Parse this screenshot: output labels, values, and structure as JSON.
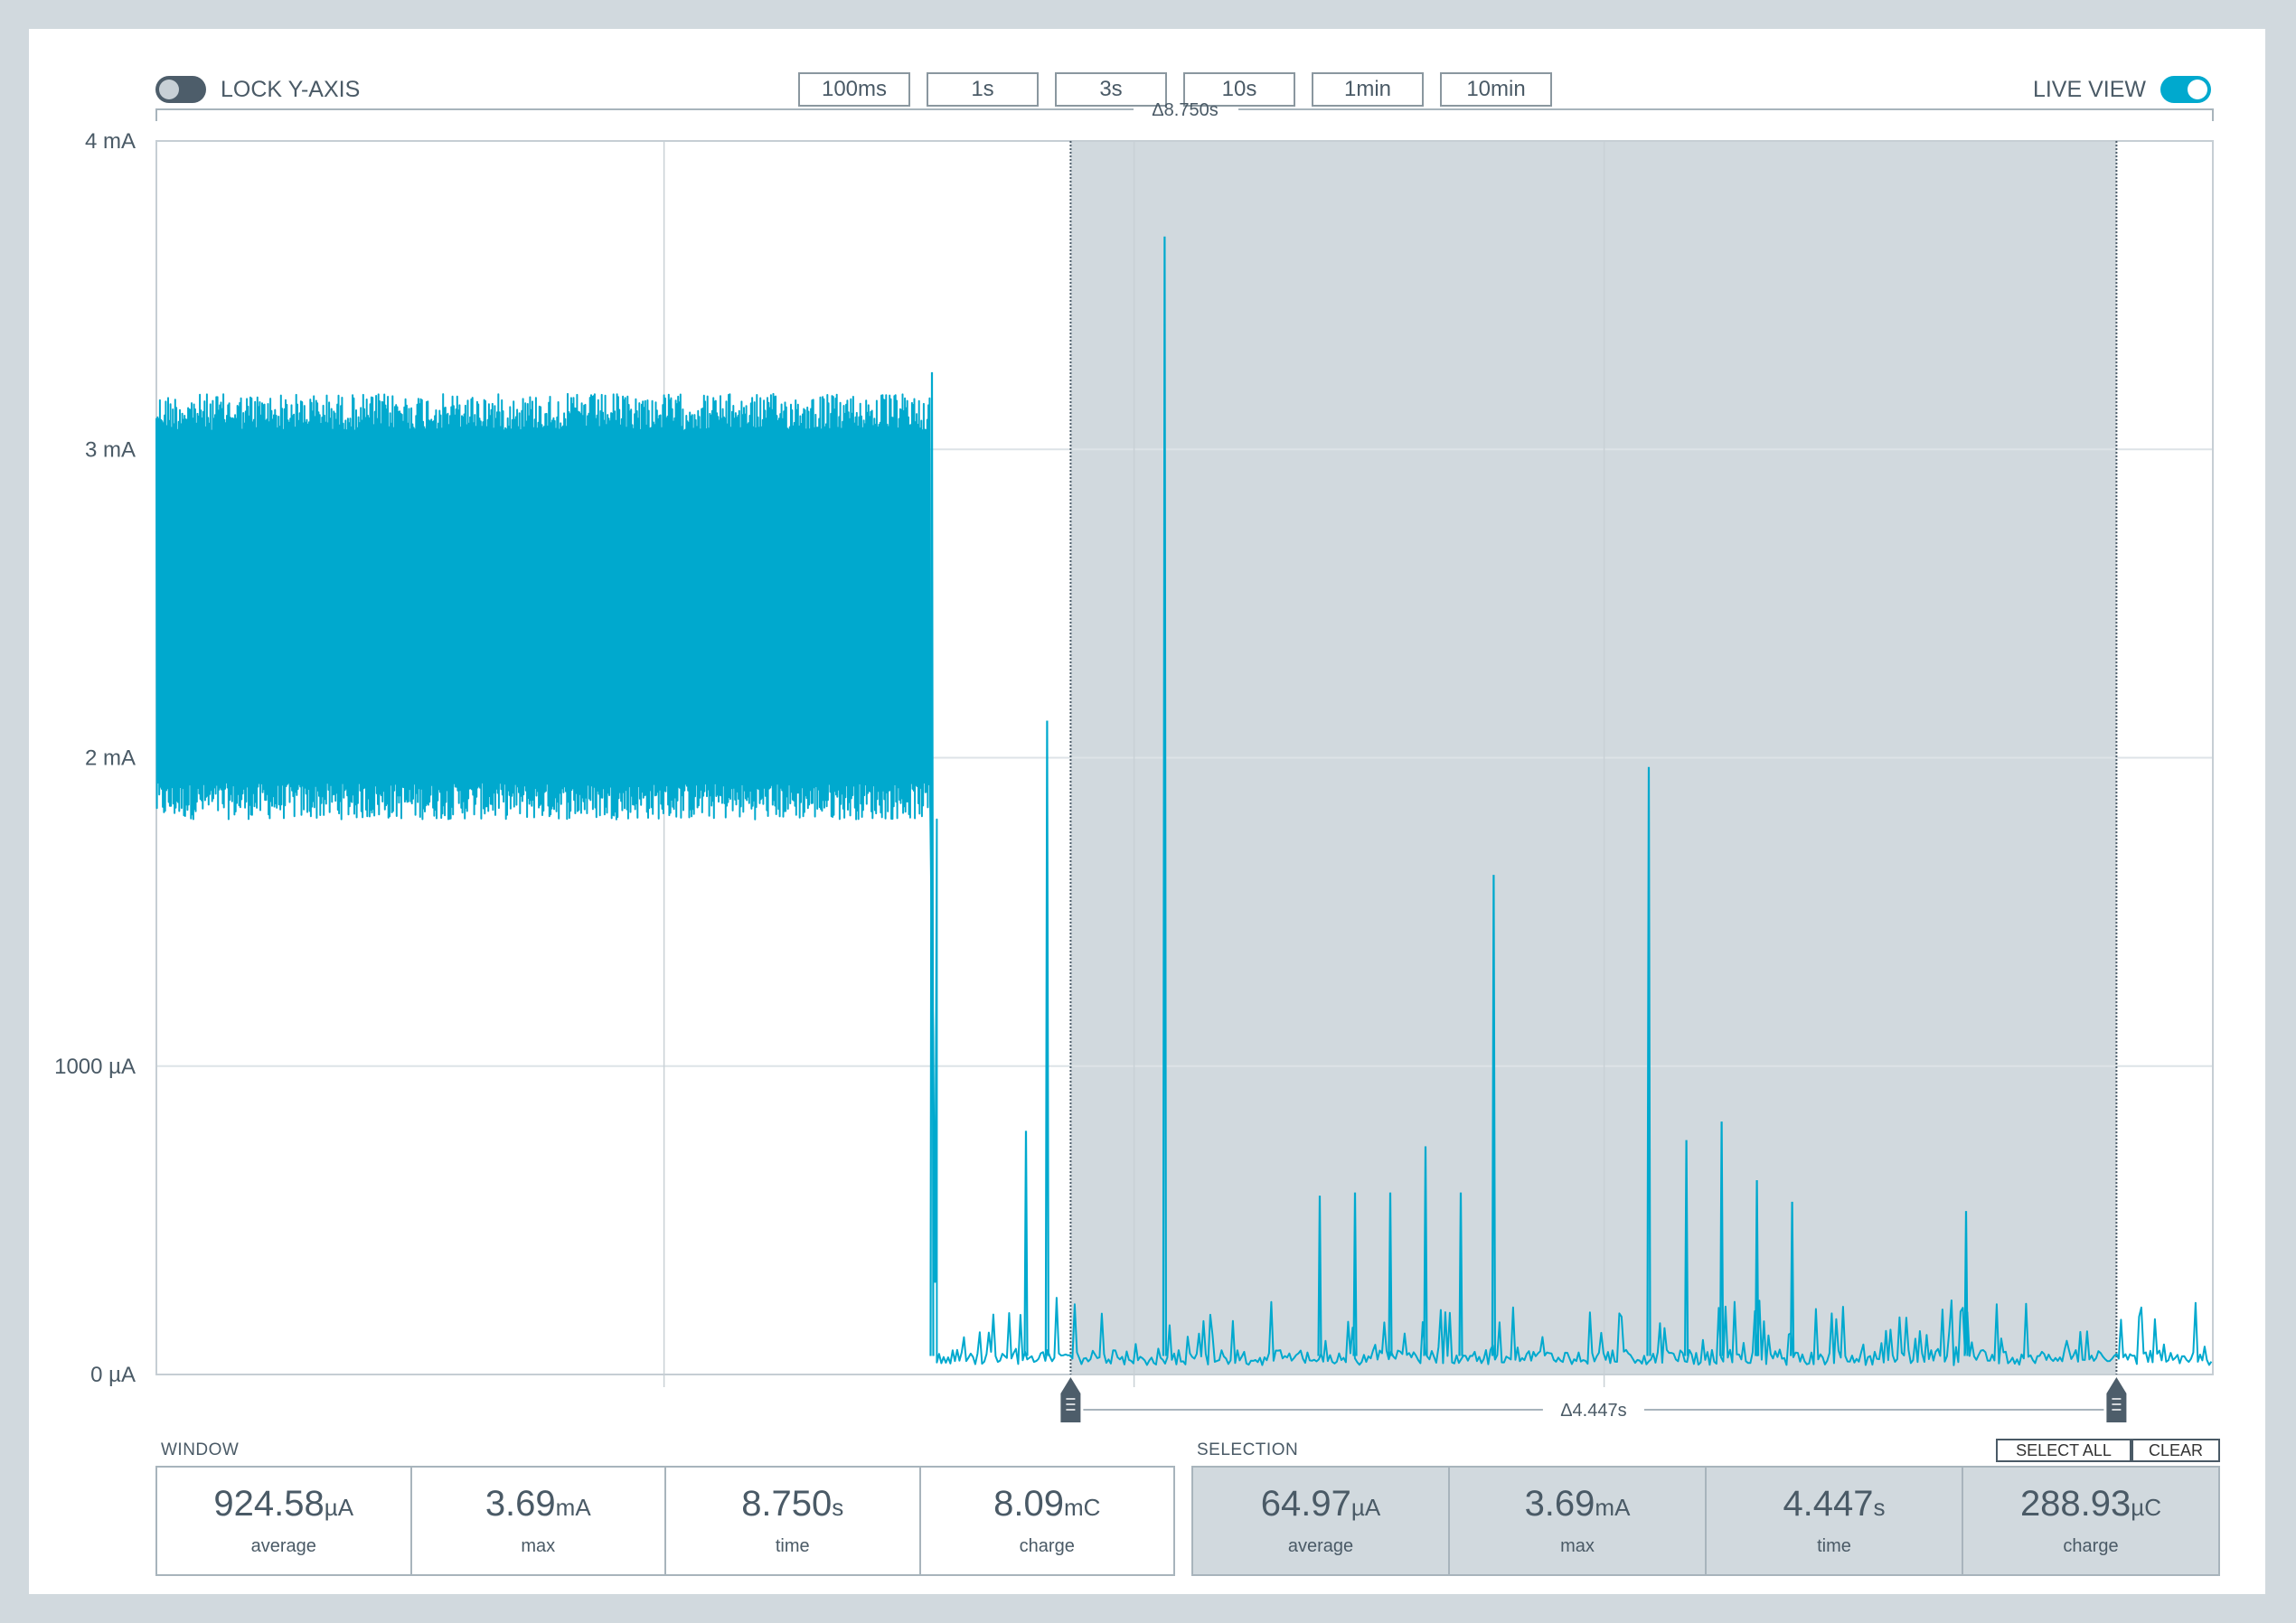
{
  "toolbar": {
    "lock_y_axis_label": "LOCK Y-AXIS",
    "lock_y_axis_on": false,
    "live_view_label": "LIVE VIEW",
    "live_view_on": true,
    "window_buttons": [
      "100ms",
      "1s",
      "3s",
      "10s",
      "1min",
      "10min"
    ]
  },
  "colors": {
    "accent": "#00a9ce",
    "selection_fill": "#d1d9de",
    "text": "#4a5a66"
  },
  "window_delta": "Δ8.750s",
  "selection_delta": "Δ4.447s",
  "chart_data": {
    "type": "line",
    "xlabel": "",
    "ylabel": "",
    "x_range_s": [
      0,
      8.75
    ],
    "ylim_uA": [
      0,
      4000
    ],
    "y_ticks": [
      {
        "value": 0,
        "label": "0 µA"
      },
      {
        "value": 1000,
        "label": "1000 µA"
      },
      {
        "value": 2000,
        "label": "2 mA"
      },
      {
        "value": 3000,
        "label": "3 mA"
      },
      {
        "value": 4000,
        "label": "4 mA"
      }
    ],
    "grid": true,
    "series": [
      {
        "segments": [
          {
            "x_start_s": 0.0,
            "x_end_s": 3.29,
            "low_uA": 1800,
            "high_uA": 3180,
            "level_uA": 2200
          },
          {
            "x_start_s": 3.29,
            "x_end_s": 8.75,
            "low_uA": 30,
            "high_uA": 250,
            "level_uA": 60
          }
        ],
        "spikes": [
          {
            "x_s": 3.3,
            "y_uA": 3250
          },
          {
            "x_s": 3.7,
            "y_uA": 790
          },
          {
            "x_s": 3.79,
            "y_uA": 2120
          },
          {
            "x_s": 4.29,
            "y_uA": 3690
          },
          {
            "x_s": 4.95,
            "y_uA": 580
          },
          {
            "x_s": 5.1,
            "y_uA": 590
          },
          {
            "x_s": 5.25,
            "y_uA": 590
          },
          {
            "x_s": 5.4,
            "y_uA": 740
          },
          {
            "x_s": 5.55,
            "y_uA": 590
          },
          {
            "x_s": 5.69,
            "y_uA": 1620
          },
          {
            "x_s": 6.35,
            "y_uA": 1970
          },
          {
            "x_s": 6.51,
            "y_uA": 760
          },
          {
            "x_s": 6.66,
            "y_uA": 820
          },
          {
            "x_s": 6.81,
            "y_uA": 630
          },
          {
            "x_s": 6.96,
            "y_uA": 560
          },
          {
            "x_s": 7.7,
            "y_uA": 530
          }
        ]
      }
    ],
    "selection": {
      "x_start_s": 3.89,
      "x_end_s": 8.34
    }
  },
  "window_stats": {
    "title": "WINDOW",
    "items": [
      {
        "value": "924.58",
        "unit": "µA",
        "caption": "average"
      },
      {
        "value": "3.69",
        "unit": "mA",
        "caption": "max"
      },
      {
        "value": "8.750",
        "unit": "s",
        "caption": "time"
      },
      {
        "value": "8.09",
        "unit": "mC",
        "caption": "charge"
      }
    ]
  },
  "selection_stats": {
    "title": "SELECTION",
    "select_all_label": "SELECT ALL",
    "clear_label": "CLEAR",
    "items": [
      {
        "value": "64.97",
        "unit": "µA",
        "caption": "average"
      },
      {
        "value": "3.69",
        "unit": "mA",
        "caption": "max"
      },
      {
        "value": "4.447",
        "unit": "s",
        "caption": "time"
      },
      {
        "value": "288.93",
        "unit": "µC",
        "caption": "charge"
      }
    ]
  }
}
